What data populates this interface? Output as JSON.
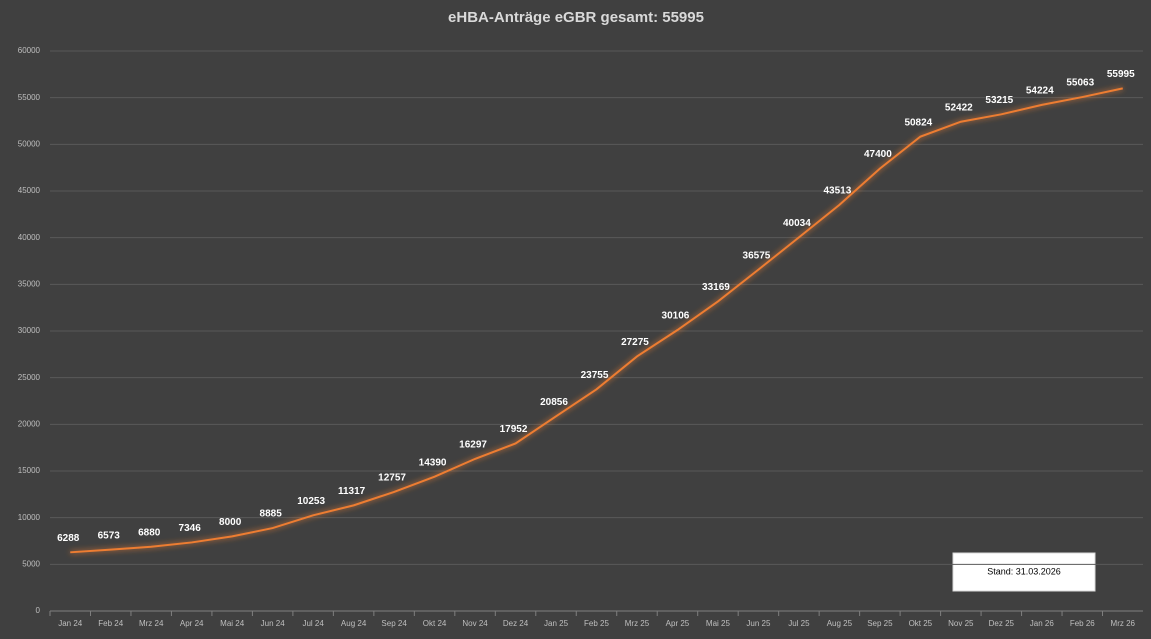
{
  "chart_data": {
    "type": "line",
    "title": "eHBA-Anträge eGBR gesamt: 55995",
    "categories": [
      "Jan 24",
      "Feb 24",
      "Mrz 24",
      "Apr 24",
      "Mai 24",
      "Jun 24",
      "Jul 24",
      "Aug 24",
      "Sep 24",
      "Okt 24",
      "Nov 24",
      "Dez 24",
      "Jan 25",
      "Feb 25",
      "Mrz 25",
      "Apr 25",
      "Mai 25",
      "Jun 25",
      "Jul 25",
      "Aug 25",
      "Sep 25",
      "Okt 25",
      "Nov 25",
      "Dez 25",
      "Jan 26",
      "Feb 26",
      "Mrz 26"
    ],
    "series": [
      {
        "color": "#ed7d31",
        "values": [
          6288,
          6573,
          6880,
          7346,
          8000,
          8885,
          10253,
          11317,
          12757,
          14390,
          16297,
          17952,
          20856,
          23755,
          27275,
          30106,
          33169,
          36575,
          40034,
          43513,
          47400,
          50824,
          52422,
          53215,
          54224,
          55063,
          55995
        ]
      }
    ],
    "ylim": [
      0,
      60000
    ],
    "yticks": [
      0,
      5000,
      10000,
      15000,
      20000,
      25000,
      30000,
      35000,
      40000,
      45000,
      50000,
      55000,
      60000
    ],
    "grid": true,
    "data_labels": true,
    "annotations": [
      "Stand: 31.03.2026"
    ]
  }
}
